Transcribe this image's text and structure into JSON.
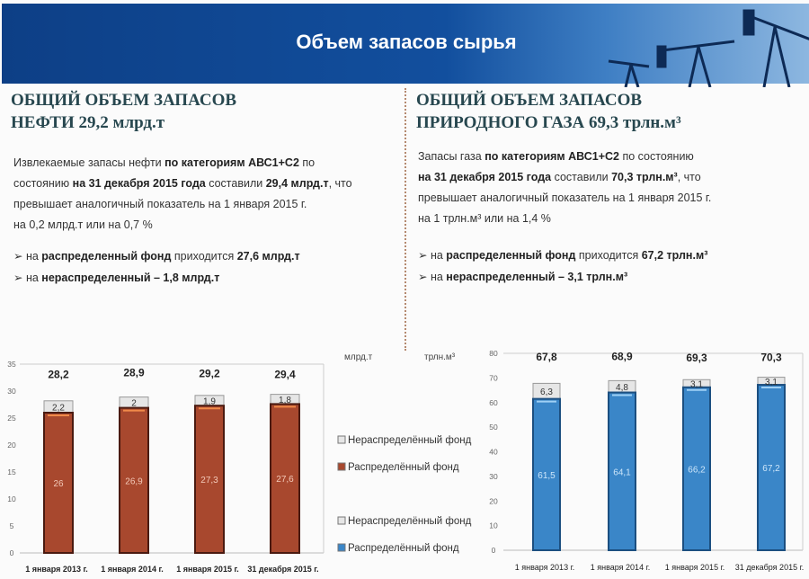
{
  "banner": {
    "title": "Объем запасов сырья",
    "colors": {
      "banner": "#124f9e"
    }
  },
  "oil": {
    "heading": [
      "ОБЩИЙ ОБЪЕМ ЗАПАСОВ",
      "НЕФТИ 29,2 млрд.т"
    ],
    "paragraph": [
      [
        {
          "t": "Извлекаемые запасы нефти "
        },
        {
          "t": "по категориям АВС1+С2",
          "b": true
        },
        {
          "t": " по"
        }
      ],
      [
        {
          "t": "состоянию "
        },
        {
          "t": "на 31 декабря 2015 года",
          "b": true
        },
        {
          "t": " составили "
        },
        {
          "t": "29,4 млрд.т",
          "b": true
        },
        {
          "t": ", что"
        }
      ],
      [
        {
          "t": "превышает аналогичный показатель на 1 января 2015 г."
        }
      ],
      [
        {
          "t": "на 0,2 млрд.т или на 0,7 %"
        }
      ]
    ],
    "bullets": [
      [
        {
          "t": "на "
        },
        {
          "t": "распределенный фонд",
          "b": true
        },
        {
          "t": " приходится "
        },
        {
          "t": "27,6 млрд.т",
          "b": true
        }
      ],
      [
        {
          "t": "на "
        },
        {
          "t": "нераспределенный – 1,8 млрд.т",
          "b": true
        }
      ]
    ]
  },
  "gas": {
    "heading": [
      "ОБЩИЙ ОБЪЕМ ЗАПАСОВ",
      "ПРИРОДНОГО ГАЗА 69,3 трлн.м³"
    ],
    "paragraph": [
      [
        {
          "t": "Запасы газа "
        },
        {
          "t": "по категориям АВС1+С2",
          "b": true
        },
        {
          "t": " по состоянию"
        }
      ],
      [
        {
          "t": "на 31 декабря 2015 года",
          "b": true
        },
        {
          "t": " составили "
        },
        {
          "t": "70,3 трлн.м³",
          "b": true
        },
        {
          "t": ", что"
        }
      ],
      [
        {
          "t": "превышает аналогичный показатель на 1 января 2015 г."
        }
      ],
      [
        {
          "t": "на 1 трлн.м³ или на 1,4 %"
        }
      ]
    ],
    "bullets": [
      [
        {
          "t": "на "
        },
        {
          "t": "распределенный фонд",
          "b": true
        },
        {
          "t": " приходится "
        },
        {
          "t": "67,2 трлн.м³",
          "b": true
        }
      ],
      [
        {
          "t": "на "
        },
        {
          "t": "нераспределенный – 3,1 трлн.м³",
          "b": true
        }
      ]
    ]
  },
  "chart_data": [
    {
      "type": "bar",
      "stacked": true,
      "unit_label": "млрд.т",
      "categories": [
        "1 января 2013 г.",
        "1 января 2014 г.",
        "1 января 2015 г.",
        "31 декабря 2015 г."
      ],
      "series": [
        {
          "name": "Распределённый фонд",
          "values": [
            26,
            26.9,
            27.3,
            27.6
          ],
          "labels": [
            "26",
            "26,9",
            "27,3",
            "27,6"
          ],
          "color": "#a8482e"
        },
        {
          "name": "Нераспределённый фонд",
          "values": [
            2.2,
            2,
            1.9,
            1.8
          ],
          "labels": [
            "2,2",
            "2",
            "1,9",
            "1,8"
          ],
          "color": "#e6e6e6"
        }
      ],
      "totals": [
        "28,2",
        "28,9",
        "29,2",
        "29,4"
      ],
      "total_values": [
        28.2,
        28.9,
        29.2,
        29.4
      ],
      "ylim": [
        0,
        35
      ],
      "yticks": [
        "0",
        "5",
        "10",
        "15",
        "20",
        "25",
        "30",
        "35"
      ],
      "grid": false,
      "legend": [
        "Нераспределённый фонд",
        "Распределённый фонд"
      ]
    },
    {
      "type": "bar",
      "stacked": true,
      "unit_label": "трлн.м³",
      "categories": [
        "1 января 2013 г.",
        "1 января 2014 г.",
        "1 января 2015 г.",
        "31 декабря 2015 г."
      ],
      "series": [
        {
          "name": "Распределённый фонд",
          "values": [
            61.5,
            64.1,
            66.2,
            67.2
          ],
          "labels": [
            "61,5",
            "64,1",
            "66,2",
            "67,2"
          ],
          "color": "#3a86c8"
        },
        {
          "name": "Нераспределённый фонд",
          "values": [
            6.3,
            4.8,
            3.1,
            3.1
          ],
          "labels": [
            "6,3",
            "4,8",
            "3,1",
            "3,1"
          ],
          "color": "#e6e6e6"
        }
      ],
      "totals": [
        "67,8",
        "68,9",
        "69,3",
        "70,3"
      ],
      "total_values": [
        67.8,
        68.9,
        69.3,
        70.3
      ],
      "ylim": [
        0,
        80
      ],
      "yticks": [
        "0",
        "10",
        "20",
        "30",
        "40",
        "50",
        "60",
        "70",
        "80"
      ],
      "grid": false,
      "legend": [
        "Нераспределённый фонд",
        "Распределённый фонд"
      ]
    }
  ]
}
